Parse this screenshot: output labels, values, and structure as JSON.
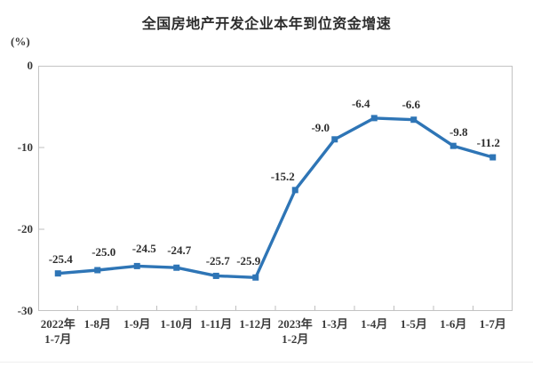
{
  "chart_data": {
    "type": "line",
    "title": "全国房地产开发企业本年到位资金增速",
    "unit_label": "(%)",
    "categories": [
      "2022年\n1-7月",
      "1-8月",
      "1-9月",
      "1-10月",
      "1-11月",
      "1-12月",
      "2023年\n1-2月",
      "1-3月",
      "1-4月",
      "1-5月",
      "1-6月",
      "1-7月"
    ],
    "values": [
      -25.4,
      -25.0,
      -24.5,
      -24.7,
      -25.7,
      -25.9,
      -15.2,
      -9.0,
      -6.4,
      -6.6,
      -9.8,
      -11.2
    ],
    "value_labels": [
      "-25.4",
      "-25.0",
      "-24.5",
      "-24.7",
      "-25.7",
      "-25.9",
      "-15.2",
      "-9.0",
      "-6.4",
      "-6.6",
      "-9.8",
      "-11.2"
    ],
    "y_ticks": [
      0,
      -10,
      -20,
      -30
    ],
    "y_tick_labels": [
      "0",
      "-10",
      "-20",
      "-30"
    ],
    "ylim": [
      -30,
      0
    ],
    "xlabel": "",
    "ylabel": "(%)",
    "grid": false,
    "legend": null,
    "marker": "square",
    "line_color": "#2E75B6",
    "axis_color": "#BFBFBF",
    "text_color": "#333333"
  }
}
